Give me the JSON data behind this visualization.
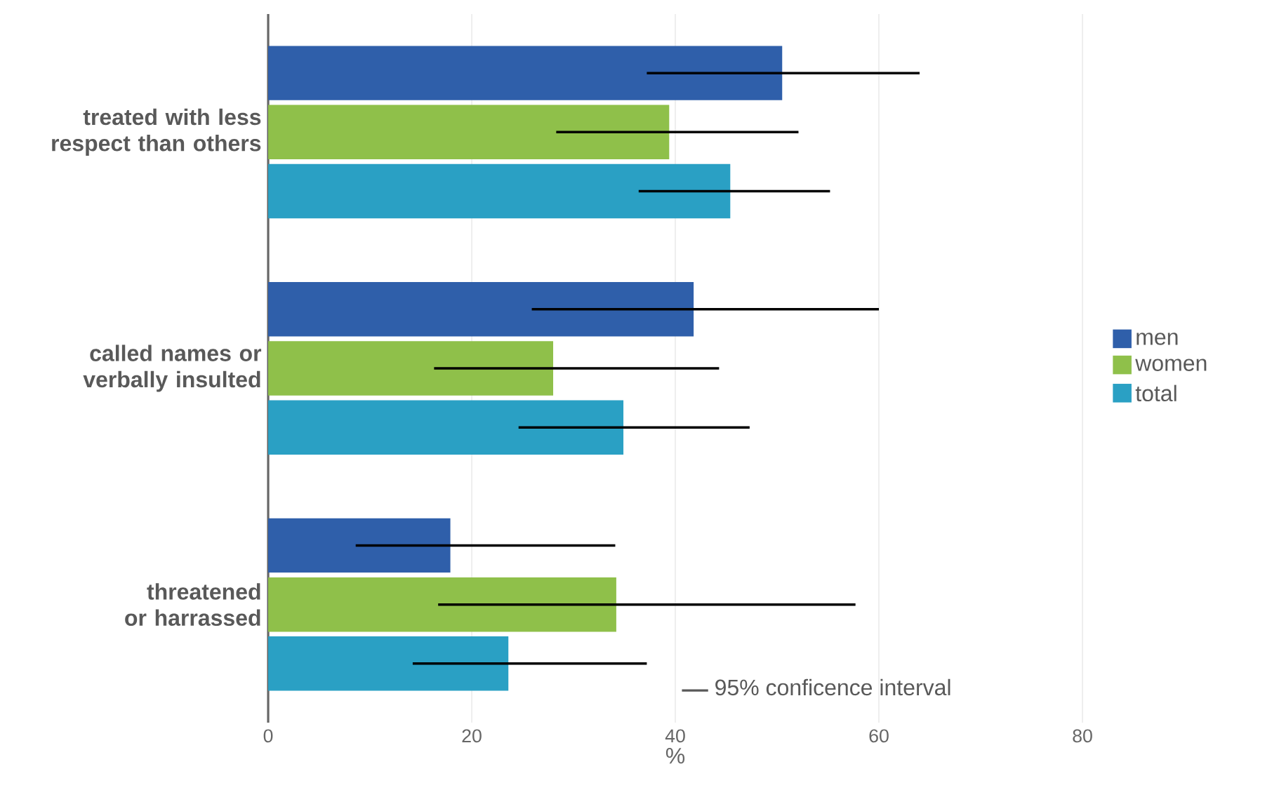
{
  "chart_data": {
    "type": "bar",
    "orientation": "horizontal",
    "xlabel": "%",
    "categories": [
      "treated with less respect than others",
      "called names or verbally insulted",
      "threatened or harrassed"
    ],
    "series": [
      {
        "name": "men",
        "color": "#2f5faa",
        "values": [
          50.5,
          41.8,
          17.9
        ],
        "errors": [
          [
            37.2,
            64.0
          ],
          [
            25.9,
            60.0
          ],
          [
            8.6,
            34.1
          ]
        ]
      },
      {
        "name": "women",
        "color": "#8fc04a",
        "values": [
          39.4,
          28.0,
          34.2
        ],
        "errors": [
          [
            28.3,
            52.1
          ],
          [
            16.3,
            44.3
          ],
          [
            16.7,
            57.7
          ]
        ]
      },
      {
        "name": "total",
        "color": "#2aa0c4",
        "values": [
          45.4,
          34.9,
          23.6
        ],
        "errors": [
          [
            36.4,
            55.2
          ],
          [
            24.6,
            47.3
          ],
          [
            14.2,
            37.2
          ]
        ]
      }
    ],
    "xlim": [
      0,
      80
    ],
    "xticks": [
      0,
      20,
      40,
      60,
      80
    ],
    "grid": "x",
    "legend": "right",
    "annotations": [
      "95% conficence interval"
    ]
  }
}
